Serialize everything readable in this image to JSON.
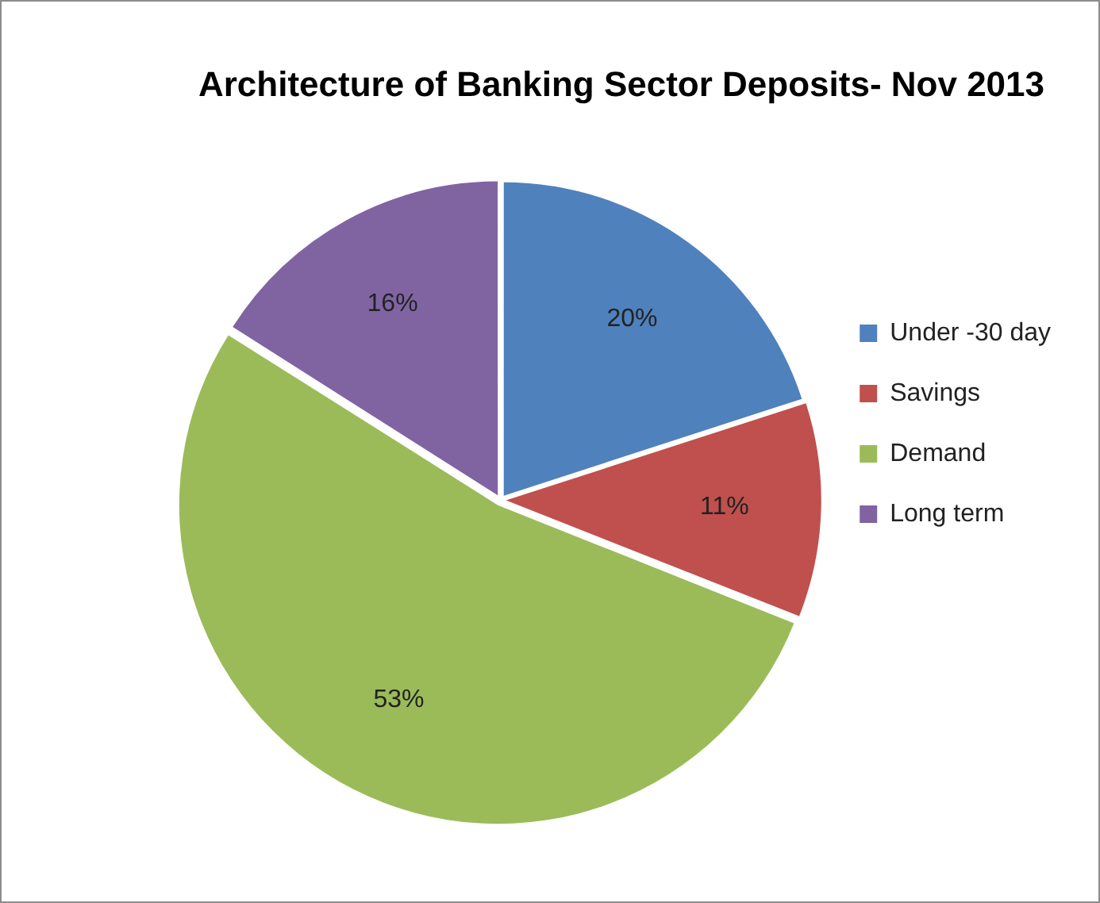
{
  "chart_data": {
    "type": "pie",
    "title": "Architecture of Banking Sector Deposits- Nov 2013",
    "categories": [
      "Under -30 day",
      "Savings",
      "Demand",
      "Long term"
    ],
    "values": [
      20,
      11,
      53,
      16
    ],
    "value_labels": [
      "20%",
      "11%",
      "53%",
      "16%"
    ],
    "colors": [
      "#4f81bd",
      "#c0504d",
      "#9bbb59",
      "#8064a2"
    ],
    "legend": "right"
  }
}
